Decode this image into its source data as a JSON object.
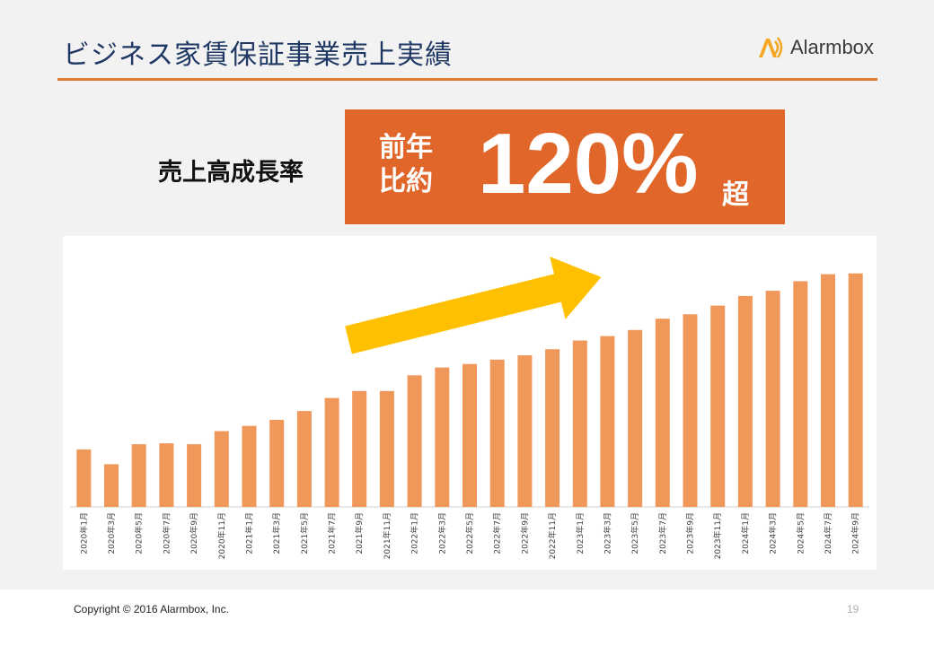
{
  "slide": {
    "title": "ビジネス家賃保証事業売上実績",
    "logo_text": "Alarmbox",
    "growth_label": "売上高成長率",
    "kpi_prefix": "前年比約",
    "kpi_value": "120%",
    "kpi_suffix": "超",
    "copyright": "Copyright © 2016 Alarmbox, Inc.",
    "page_number": "19"
  },
  "colors": {
    "title": "#1f3864",
    "accent_rule": "#e07a2f",
    "kpi_box": "#e0662a",
    "bar": "#f0975a",
    "arrow": "#ffc000"
  },
  "chart_data": {
    "type": "bar",
    "title": "",
    "xlabel": "",
    "ylabel": "",
    "y_axis_shown": false,
    "grid": false,
    "categories": [
      "2020年1月",
      "2020年3月",
      "2020年5月",
      "2020年7月",
      "2020年9月",
      "2020年11月",
      "2021年1月",
      "2021年3月",
      "2021年5月",
      "2021年7月",
      "2021年9月",
      "2021年11月",
      "2022年1月",
      "2022年3月",
      "2022年5月",
      "2022年7月",
      "2022年9月",
      "2022年11月",
      "2023年1月",
      "2023年3月",
      "2023年5月",
      "2023年7月",
      "2023年9月",
      "2023年11月",
      "2024年1月",
      "2024年3月",
      "2024年5月",
      "2024年7月",
      "2024年9月"
    ],
    "values": [
      66,
      49,
      72,
      73,
      72,
      87,
      93,
      100,
      110,
      125,
      133,
      133,
      151,
      160,
      164,
      169,
      174,
      181,
      191,
      196,
      203,
      216,
      221,
      231,
      242,
      248,
      259,
      267,
      268
    ],
    "ylim": [
      0,
      280
    ],
    "annotations": [
      {
        "type": "trend-arrow",
        "direction": "up-right"
      }
    ]
  }
}
